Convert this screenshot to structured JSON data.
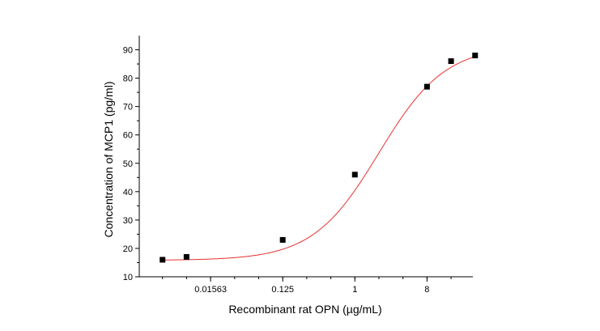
{
  "chart_data": {
    "type": "scatter",
    "title": "",
    "xlabel": "Recombinant rat OPN (µg/mL)",
    "ylabel": "Concentration of MCP1 (pg/ml)",
    "x_scale": "log2",
    "xlim": [
      0.002,
      30
    ],
    "ylim": [
      10,
      95
    ],
    "x_ticks": [
      0.01563,
      0.125,
      1,
      8
    ],
    "x_tick_labels": [
      "0.01563",
      "0.125",
      "1",
      "8"
    ],
    "y_ticks": [
      10,
      20,
      30,
      40,
      50,
      60,
      70,
      80,
      90
    ],
    "y_tick_labels": [
      "10",
      "20",
      "30",
      "40",
      "50",
      "60",
      "70",
      "80",
      "90"
    ],
    "grid": false,
    "legend": "none",
    "series": [
      {
        "type": "scatter",
        "marker": "square",
        "color": "#000000",
        "x": [
          0.00391,
          0.00781,
          0.125,
          1,
          8,
          16,
          32
        ],
        "y": [
          16,
          17,
          23,
          46,
          77,
          86,
          88
        ]
      },
      {
        "type": "line",
        "fit": "4PL",
        "color": "#e83030",
        "params": {
          "bottom": 15.8,
          "top": 91.5,
          "ec50": 2.0,
          "hill": 1.05
        }
      }
    ]
  }
}
